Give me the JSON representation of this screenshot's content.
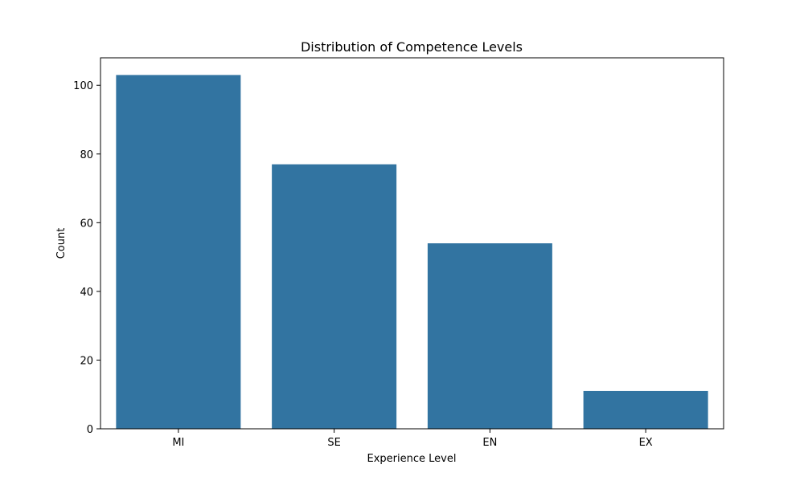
{
  "colors": {
    "bar": "#3274a1",
    "axis": "#000000",
    "background": "#ffffff"
  },
  "chart_data": {
    "type": "bar",
    "title": "Distribution of Competence Levels",
    "xlabel": "Experience Level",
    "ylabel": "Count",
    "categories": [
      "MI",
      "SE",
      "EN",
      "EX"
    ],
    "values": [
      103,
      77,
      54,
      11
    ],
    "ylim": [
      0,
      108
    ],
    "yticks": [
      0,
      20,
      40,
      60,
      80,
      100
    ],
    "grid": false,
    "legend": "none"
  }
}
